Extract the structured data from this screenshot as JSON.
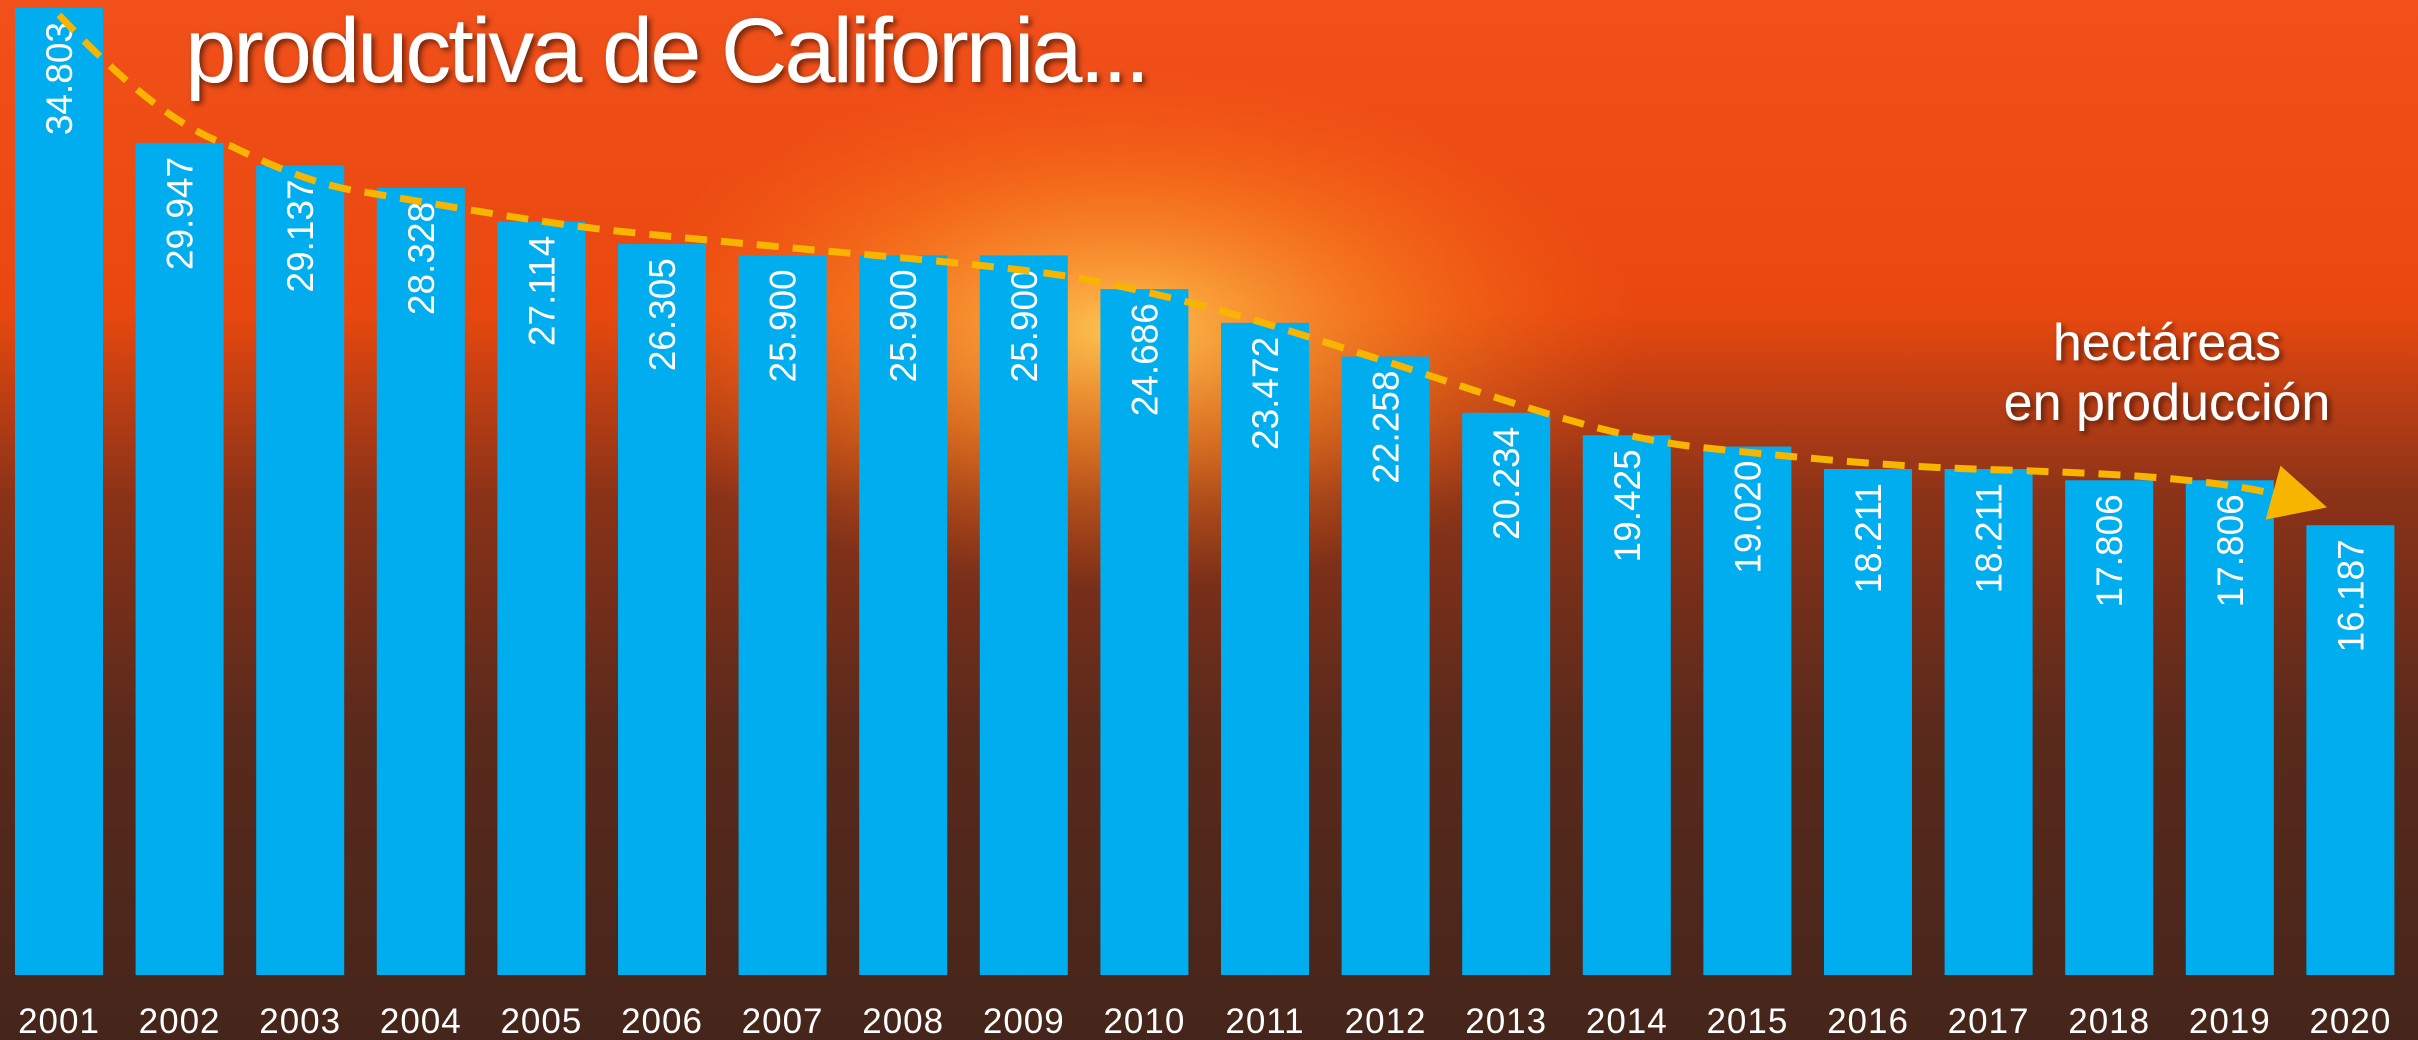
{
  "chart_data": {
    "type": "bar",
    "title": "productiva de California...",
    "annotation": [
      "hectáreas",
      "en producción"
    ],
    "categories": [
      "2001",
      "2002",
      "2003",
      "2004",
      "2005",
      "2006",
      "2007",
      "2008",
      "2009",
      "2010",
      "2011",
      "2012",
      "2013",
      "2014",
      "2015",
      "2016",
      "2017",
      "2018",
      "2019",
      "2020"
    ],
    "values": [
      34803,
      29947,
      29137,
      28328,
      27114,
      26305,
      25900,
      25900,
      25900,
      24686,
      23472,
      22258,
      20234,
      19425,
      19020,
      18211,
      18211,
      17806,
      17806,
      16187
    ],
    "value_labels": [
      "34.803",
      "29.947",
      "29.137",
      "28.328",
      "27.114",
      "26.305",
      "25.900",
      "25.900",
      "25.900",
      "24.686",
      "23.472",
      "22.258",
      "20.234",
      "19.425",
      "19.020",
      "18.211",
      "18.211",
      "17.806",
      "17.806",
      "16.187"
    ],
    "color": "#00aeef"
  }
}
